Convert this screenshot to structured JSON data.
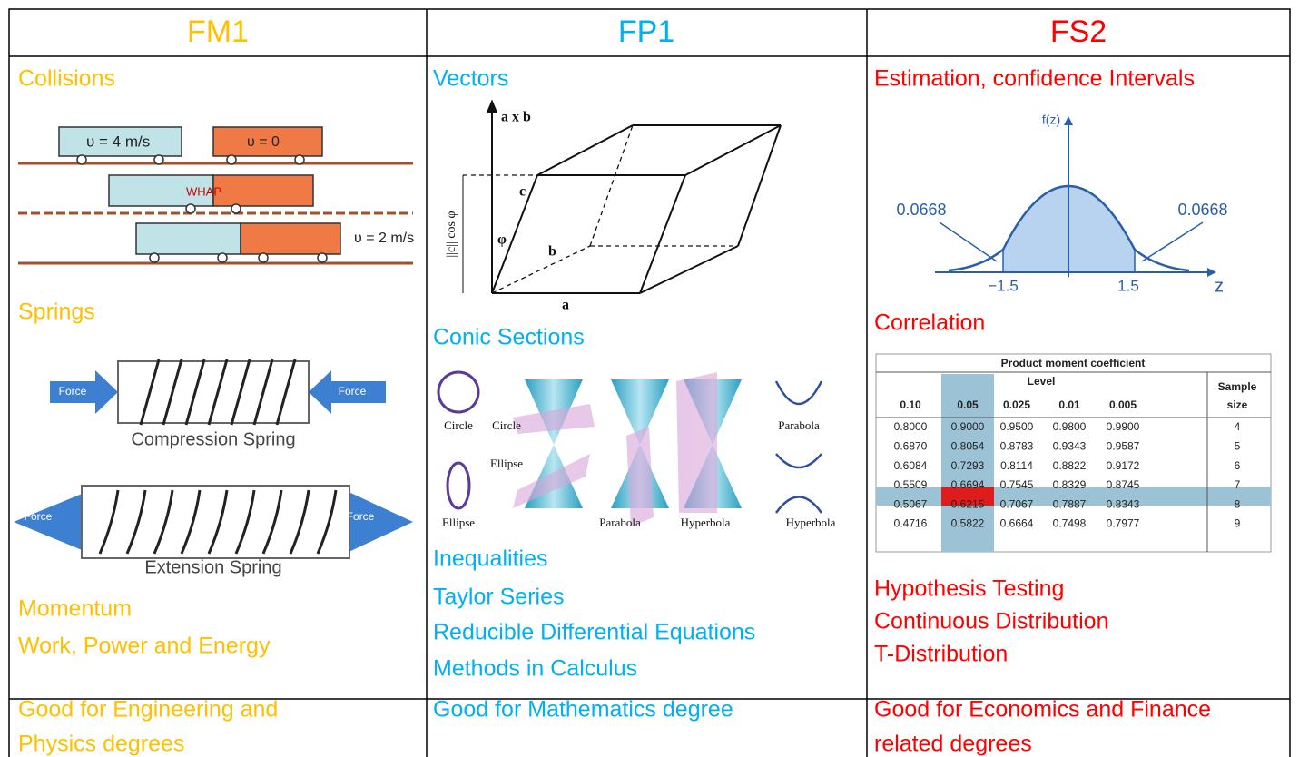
{
  "columns": [
    {
      "title": "FM1",
      "topics": [
        "Collisions",
        "Springs",
        "Momentum",
        "Work, Power and Energy"
      ],
      "footer": [
        "Good for Engineering and",
        "Physics degrees"
      ],
      "collision_labels": [
        "υ = 4 m/s",
        "υ = 0",
        "WHAP",
        "υ = 2 m/s"
      ],
      "spring_labels": {
        "force": "Force",
        "compression": "Compression Spring",
        "extension": "Extension Spring"
      }
    },
    {
      "title": "FP1",
      "topics": [
        "Vectors",
        "Conic Sections",
        "Inequalities",
        "Taylor Series",
        "Reducible Differential Equations",
        "Methods in Calculus"
      ],
      "footer": [
        "Good for Mathematics degree"
      ],
      "vector_labels": [
        "a x b",
        "c",
        "b",
        "a",
        "φ",
        "||c|| cos φ"
      ],
      "conic_labels": [
        "Circle",
        "Circle",
        "Ellipse",
        "Ellipse",
        "Parabola",
        "Hyperbola",
        "Parabola",
        "Hyperbola"
      ]
    },
    {
      "title": "FS2",
      "topics": [
        "Estimation, confidence Intervals",
        "Correlation",
        "Hypothesis Testing",
        "Continuous Distribution",
        "T-Distribution"
      ],
      "footer": [
        "Good for Economics and Finance",
        "related degrees"
      ],
      "normal_labels": [
        "f(z)",
        "0.0668",
        "0.0668",
        "−1.5",
        "1.5",
        "z"
      ],
      "table": {
        "title": "Product moment coefficient",
        "level": "Level",
        "sample": [
          "Sample",
          "size"
        ],
        "header": [
          "0.10",
          "0.05",
          "0.025",
          "0.01",
          "0.005"
        ],
        "rows": [
          [
            "0.8000",
            "0.9000",
            "0.9500",
            "0.9800",
            "0.9900",
            "4"
          ],
          [
            "0.6870",
            "0.8054",
            "0.8783",
            "0.9343",
            "0.9587",
            "5"
          ],
          [
            "0.6084",
            "0.7293",
            "0.8114",
            "0.8822",
            "0.9172",
            "6"
          ],
          [
            "0.5509",
            "0.6694",
            "0.7545",
            "0.8329",
            "0.8745",
            "7"
          ],
          [
            "0.5067",
            "0.6215",
            "0.7067",
            "0.7887",
            "0.8343",
            "8"
          ],
          [
            "0.4716",
            "0.5822",
            "0.6664",
            "0.7498",
            "0.7977",
            "9"
          ]
        ]
      }
    }
  ]
}
